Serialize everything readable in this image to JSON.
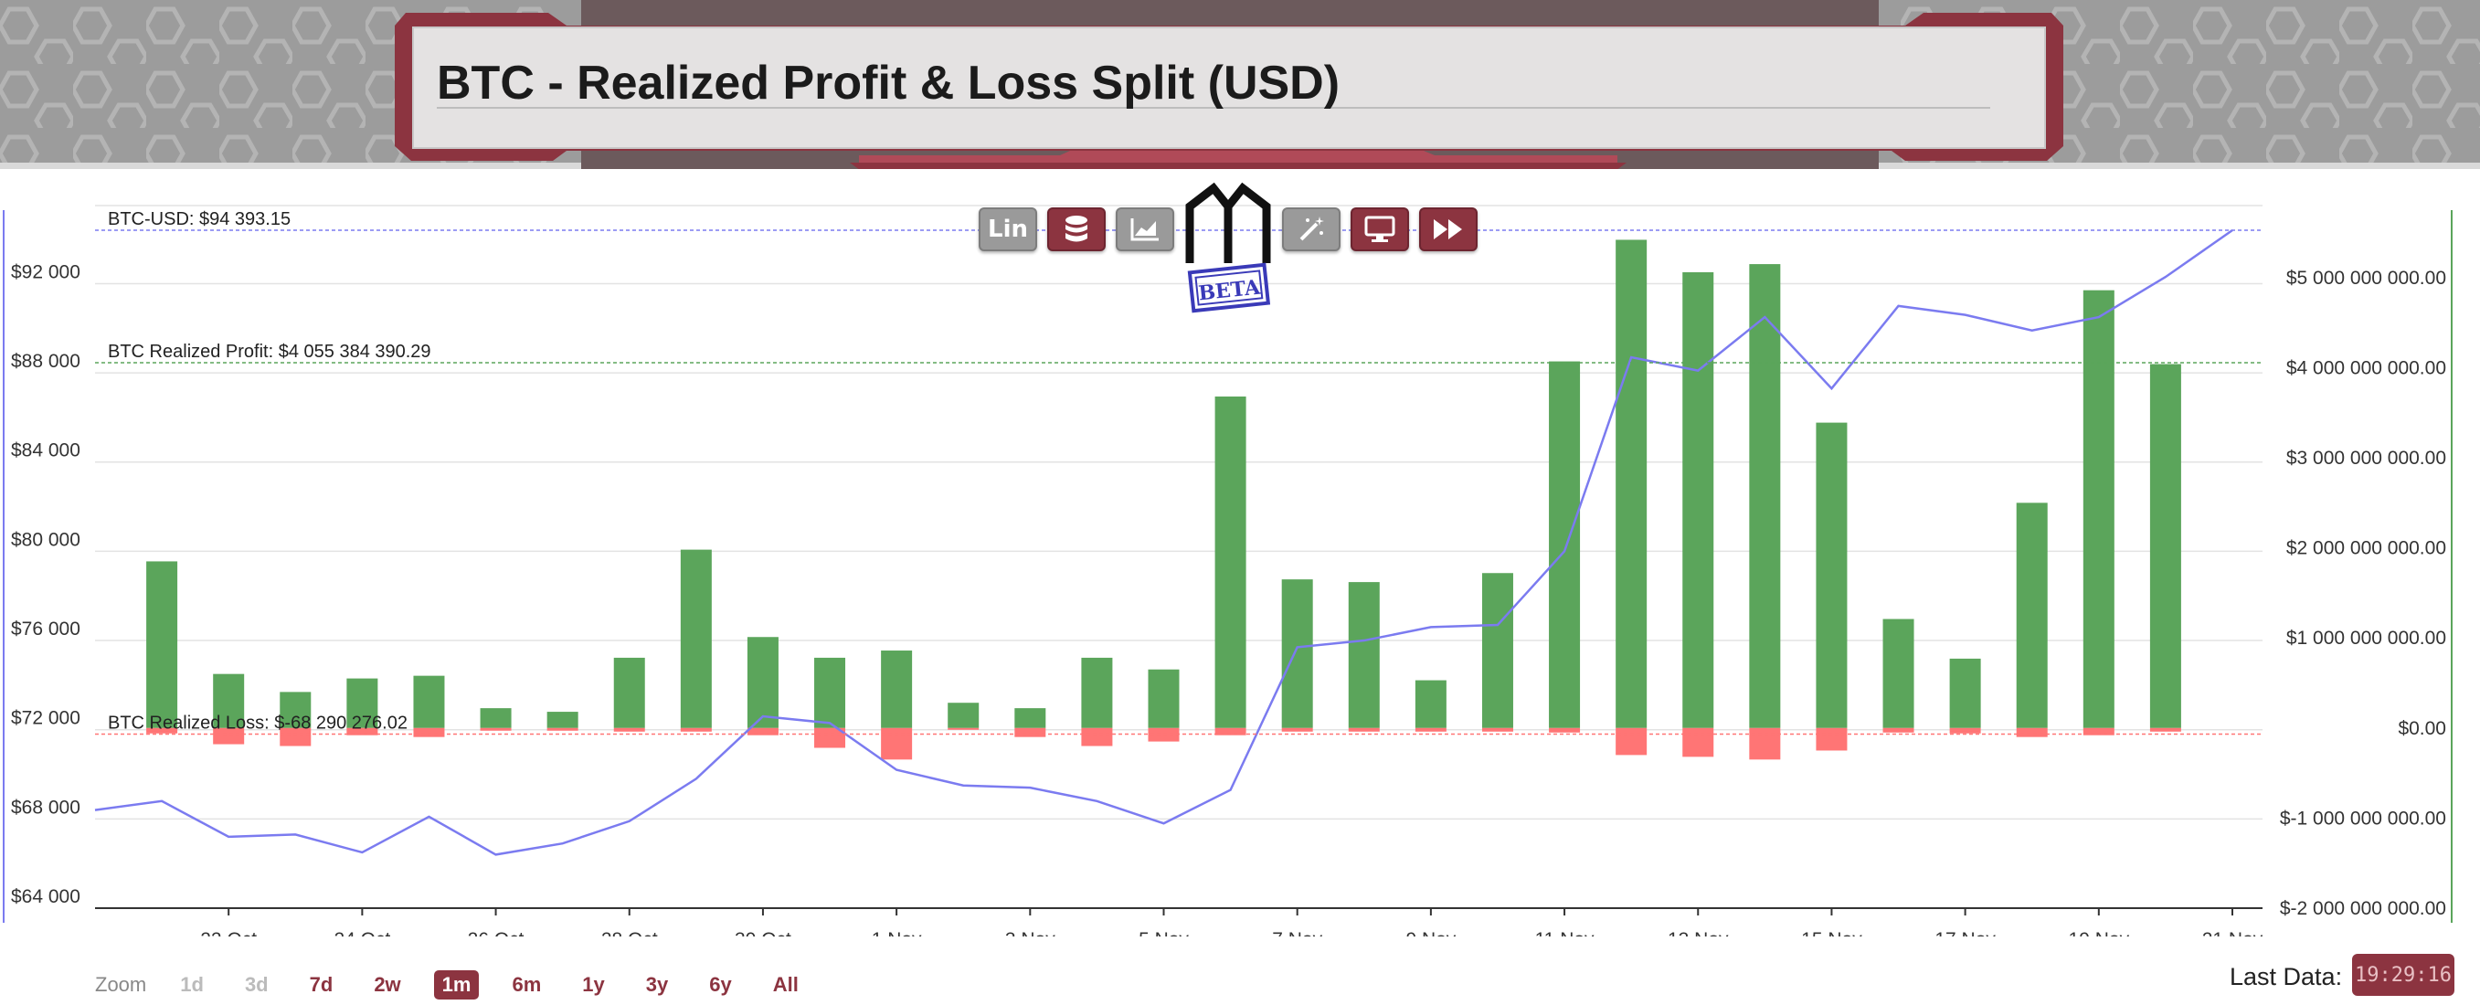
{
  "header": {
    "title": "BTC - Realized Profit & Loss Split (USD)"
  },
  "logo": {
    "text": "MD",
    "badge": "BETA"
  },
  "toolbar": {
    "scale_label": "Lin",
    "buttons": [
      {
        "icon": "lin-scale-button",
        "style": "grey"
      },
      {
        "icon": "database-icon",
        "style": "red"
      },
      {
        "icon": "area-chart-icon",
        "style": "grey"
      },
      {
        "icon": "magic-wand-icon",
        "style": "grey"
      },
      {
        "icon": "monitor-icon",
        "style": "red"
      },
      {
        "icon": "fast-forward-icon",
        "style": "red"
      }
    ]
  },
  "zoom": {
    "label": "Zoom",
    "options": [
      {
        "label": "1d",
        "state": "disabled"
      },
      {
        "label": "3d",
        "state": "disabled"
      },
      {
        "label": "7d",
        "state": "normal"
      },
      {
        "label": "2w",
        "state": "normal"
      },
      {
        "label": "1m",
        "state": "active"
      },
      {
        "label": "6m",
        "state": "normal"
      },
      {
        "label": "1y",
        "state": "normal"
      },
      {
        "label": "3y",
        "state": "normal"
      },
      {
        "label": "6y",
        "state": "normal"
      },
      {
        "label": "All",
        "state": "normal"
      }
    ]
  },
  "last_data": {
    "label": "Last Data:",
    "value": "19:29:16"
  },
  "colors": {
    "profit": "#5ba55b",
    "loss": "#ff7575",
    "price": "#7b7bf0",
    "accent": "#8c3440"
  },
  "chart_data": {
    "type": "bar",
    "dates": [
      "2024-10-20",
      "2024-10-21",
      "2024-10-22",
      "2024-10-23",
      "2024-10-24",
      "2024-10-25",
      "2024-10-26",
      "2024-10-27",
      "2024-10-28",
      "2024-10-29",
      "2024-10-30",
      "2024-10-31",
      "2024-11-01",
      "2024-11-02",
      "2024-11-03",
      "2024-11-04",
      "2024-11-05",
      "2024-11-06",
      "2024-11-07",
      "2024-11-08",
      "2024-11-09",
      "2024-11-10",
      "2024-11-11",
      "2024-11-12",
      "2024-11-13",
      "2024-11-14",
      "2024-11-15",
      "2024-11-16",
      "2024-11-17",
      "2024-11-18",
      "2024-11-19",
      "2024-11-20",
      "2024-11-21"
    ],
    "x_ticks": [
      "22 Oct",
      "24 Oct",
      "26 Oct",
      "28 Oct",
      "30 Oct",
      "1 Nov",
      "3 Nov",
      "5 Nov",
      "7 Nov",
      "9 Nov",
      "11 Nov",
      "13 Nov",
      "15 Nov",
      "17 Nov",
      "19 Nov",
      "21 Nov"
    ],
    "series": [
      {
        "name": "BTC Realized Profit",
        "axis": "right",
        "values": [
          null,
          1850000000,
          600000000,
          400000000,
          550000000,
          580000000,
          220000000,
          180000000,
          780000000,
          1980000000,
          1010000000,
          780000000,
          860000000,
          280000000,
          220000000,
          780000000,
          650000000,
          3680000000,
          1650000000,
          1620000000,
          530000000,
          1720000000,
          4070000000,
          5420000000,
          5060000000,
          5150000000,
          3390000000,
          1210000000,
          770000000,
          2500000000,
          4860000000,
          4040000000,
          null
        ]
      },
      {
        "name": "BTC Realized Loss",
        "axis": "right",
        "values": [
          null,
          -60000000,
          -180000000,
          -200000000,
          -80000000,
          -100000000,
          -30000000,
          -30000000,
          -40000000,
          -40000000,
          -80000000,
          -220000000,
          -350000000,
          -20000000,
          -100000000,
          -200000000,
          -150000000,
          -80000000,
          -40000000,
          -40000000,
          -40000000,
          -40000000,
          -50000000,
          -300000000,
          -320000000,
          -350000000,
          -250000000,
          -50000000,
          -60000000,
          -100000000,
          -80000000,
          -40000000,
          null
        ]
      },
      {
        "name": "BTC-USD",
        "axis": "left",
        "type": "line",
        "values": [
          68400,
          68800,
          67200,
          67300,
          66500,
          68100,
          66400,
          66900,
          67900,
          69800,
          72600,
          72300,
          70200,
          69500,
          69400,
          68800,
          67800,
          69300,
          75700,
          76000,
          76600,
          76700,
          80000,
          88700,
          88100,
          90500,
          87300,
          91000,
          90600,
          89900,
          90500,
          92300,
          94393.15
        ]
      }
    ],
    "left_axis": {
      "ticks": [
        "$64 000",
        "$68 000",
        "$72 000",
        "$76 000",
        "$80 000",
        "$84 000",
        "$88 000",
        "$92 000"
      ],
      "range": [
        64000,
        95500
      ]
    },
    "right_axis": {
      "ticks": [
        "$-2 000 000 000.00",
        "$-1 000 000 000.00",
        "$0.00",
        "$1 000 000 000.00",
        "$2 000 000 000.00",
        "$3 000 000 000.00",
        "$4 000 000 000.00",
        "$5 000 000 000.00"
      ],
      "range": [
        -2000000000,
        5800000000
      ]
    },
    "annotations": [
      {
        "label": "BTC-USD: $94 393.15",
        "axis": "left",
        "value": 94393.15,
        "color": "#7b7bf0"
      },
      {
        "label": "BTC Realized Profit: $4 055 384 390.29",
        "axis": "right",
        "value": 4055384390.29,
        "color": "#5ba55b"
      },
      {
        "label": "BTC Realized Loss: $-68 290 276.02",
        "axis": "right",
        "value": -68290276.02,
        "color": "#ff7575"
      }
    ]
  }
}
